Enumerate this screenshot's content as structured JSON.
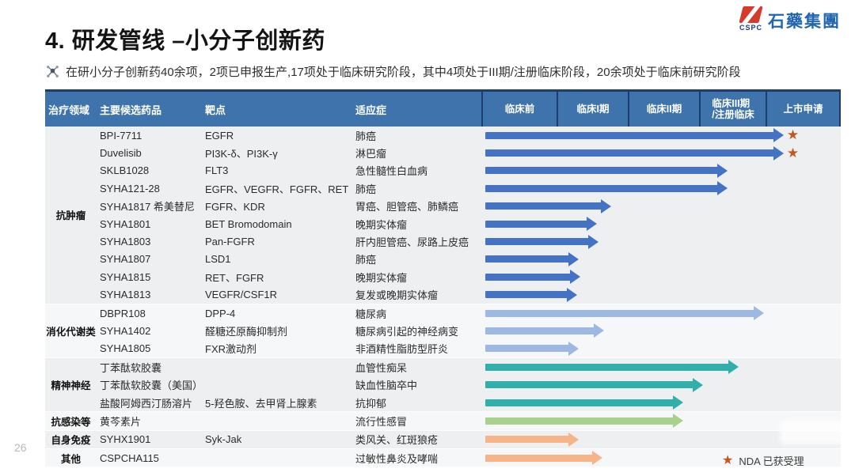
{
  "slide": {
    "title": "4. 研发管线 –小分子创新药",
    "subtitle": "在研小分子创新药40余项，2项已申报生产,17项处于临床研究阶段，其中4项处于III期/注册临床阶段，20余项处于临床前研究阶段",
    "page_number": "26"
  },
  "logo": {
    "company_en": "CSPC",
    "company_cn": "石藥集團"
  },
  "legend": {
    "star_label": "NDA 已获受理"
  },
  "table": {
    "columns": [
      "治疗领域",
      "主要候选药品",
      "靶点",
      "适应症"
    ],
    "phases": [
      "临床前",
      "临床I期",
      "临床II期",
      "临床III期\n/注册临床",
      "上市申请"
    ]
  },
  "chart_data": {
    "type": "bar",
    "title": "4. 研发管线 –小分子创新药",
    "orientation": "horizontal",
    "x_phase_columns": [
      "临床前",
      "临床I期",
      "临床II期",
      "临床III期/注册临床",
      "上市申请"
    ],
    "colors": {
      "blue": "#4472c4",
      "lightblue": "#9db9e2",
      "teal": "#31b0ab",
      "green": "#a9d18e",
      "orange": "#f6b488",
      "star": "#c2571f"
    },
    "groups": [
      {
        "area": "抗肿瘤",
        "drugs": [
          {
            "name": "BPI-7711",
            "target": "EGFR",
            "indication": "肺癌",
            "stage": "上市申请",
            "bar_pct": 83,
            "color": "blue",
            "nda_star": true
          },
          {
            "name": "Duvelisib",
            "target": "PI3K-δ、PI3K-γ",
            "indication": "淋巴瘤",
            "stage": "上市申请",
            "bar_pct": 83,
            "color": "blue",
            "nda_star": true
          },
          {
            "name": "SKLB1028",
            "target": "FLT3",
            "indication": "急性髓性白血病",
            "stage": "临床III期/注册临床",
            "bar_pct": 67.5,
            "color": "blue",
            "nda_star": false
          },
          {
            "name": "SYHA121-28",
            "target": "EGFR、VEGFR、FGFR、RET",
            "indication": "肺癌",
            "stage": "临床III期/注册临床",
            "bar_pct": 67.5,
            "color": "blue",
            "nda_star": false
          },
          {
            "name": "SYHA1817 希美替尼",
            "target": "FGFR、KDR",
            "indication": "胃癌、胆管癌、肺鳞癌",
            "stage": "临床I期",
            "bar_pct": 35,
            "color": "blue",
            "nda_star": false
          },
          {
            "name": "SYHA1801",
            "target": "BET Bromodomain",
            "indication": "晚期实体瘤",
            "stage": "临床I期",
            "bar_pct": 31,
            "color": "blue",
            "nda_star": false
          },
          {
            "name": "SYHA1803",
            "target": "Pan-FGFR",
            "indication": "肝内胆管癌、尿路上皮癌",
            "stage": "临床I期",
            "bar_pct": 31.5,
            "color": "blue",
            "nda_star": false
          },
          {
            "name": "SYHA1807",
            "target": "LSD1",
            "indication": "肺癌",
            "stage": "临床I期",
            "bar_pct": 26,
            "color": "blue",
            "nda_star": false
          },
          {
            "name": "SYHA1815",
            "target": "RET、FGFR",
            "indication": "晚期实体瘤",
            "stage": "临床I期",
            "bar_pct": 26.5,
            "color": "blue",
            "nda_star": false
          },
          {
            "name": "SYHA1813",
            "target": "VEGFR/CSF1R",
            "indication": "复发或晚期实体瘤",
            "stage": "临床I期",
            "bar_pct": 25.5,
            "color": "blue",
            "nda_star": false
          }
        ]
      },
      {
        "area": "消化代谢类",
        "drugs": [
          {
            "name": "DBPR108",
            "target": "DPP-4",
            "indication": "糖尿病",
            "stage": "临床III期/注册临床",
            "bar_pct": 77.5,
            "color": "lightblue",
            "nda_star": false
          },
          {
            "name": "SYHA1402",
            "target": "醛糖还原酶抑制剂",
            "indication": "糖尿病引起的神经病变",
            "stage": "临床I期",
            "bar_pct": 33,
            "color": "lightblue",
            "nda_star": false
          },
          {
            "name": "SYHA1805",
            "target": "FXR激动剂",
            "indication": "非酒精性脂肪型肝炎",
            "stage": "临床I期",
            "bar_pct": 26,
            "color": "lightblue",
            "nda_star": false
          }
        ]
      },
      {
        "area": "精神神经",
        "drugs": [
          {
            "name": "丁苯酞软胶囊",
            "target": "",
            "indication": "血管性痴呆",
            "stage": "临床III期/注册临床",
            "bar_pct": 70.5,
            "color": "teal",
            "nda_star": false
          },
          {
            "name": "丁苯酞软胶囊（美国）",
            "target": "",
            "indication": "缺血性脑卒中",
            "stage": "临床II期",
            "bar_pct": 60.5,
            "color": "teal",
            "nda_star": false
          },
          {
            "name": "盐酸阿姆西汀肠溶片",
            "target": "5-羟色胺、去甲肾上腺素",
            "indication": "抗抑郁",
            "stage": "临床II期",
            "bar_pct": 55,
            "color": "teal",
            "nda_star": false
          }
        ]
      },
      {
        "area": "抗感染等",
        "drugs": [
          {
            "name": "黄芩素片",
            "target": "",
            "indication": "流行性感冒",
            "stage": "临床II期",
            "bar_pct": 55,
            "color": "green",
            "nda_star": false
          }
        ]
      },
      {
        "area": "自身免疫",
        "drugs": [
          {
            "name": "SYHX1901",
            "target": "Syk-Jak",
            "indication": "类风关、红斑狼疮",
            "stage": "临床I期",
            "bar_pct": 26,
            "color": "orange",
            "nda_star": false
          }
        ]
      },
      {
        "area": "其他",
        "drugs": [
          {
            "name": "CSPCHA115",
            "target": "",
            "indication": "过敏性鼻炎及哮喘",
            "stage": "临床I期",
            "bar_pct": 32.5,
            "color": "orange",
            "nda_star": false
          }
        ]
      }
    ]
  }
}
